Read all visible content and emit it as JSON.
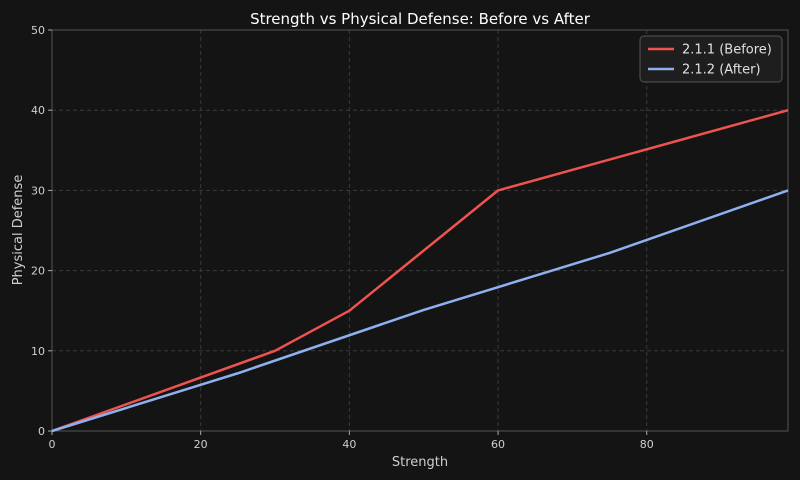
{
  "chart_data": {
    "type": "line",
    "title": "Strength vs Physical Defense: Before vs After",
    "xlabel": "Strength",
    "ylabel": "Physical Defense",
    "xlim": [
      0,
      99
    ],
    "ylim": [
      0,
      50
    ],
    "xticks": [
      0,
      20,
      40,
      60,
      80
    ],
    "yticks": [
      0,
      10,
      20,
      30,
      40,
      50
    ],
    "grid": true,
    "legend_position": "top-right",
    "series": [
      {
        "name": "2.1.1 (Before)",
        "color": "#ef5350",
        "x": [
          0,
          30,
          40,
          60,
          99
        ],
        "y": [
          0,
          10,
          15,
          30,
          40
        ]
      },
      {
        "name": "2.1.2 (After)",
        "color": "#8fb0f0",
        "x": [
          0,
          25,
          50,
          75,
          99
        ],
        "y": [
          0,
          7.2,
          15.1,
          22.2,
          30
        ]
      }
    ]
  }
}
